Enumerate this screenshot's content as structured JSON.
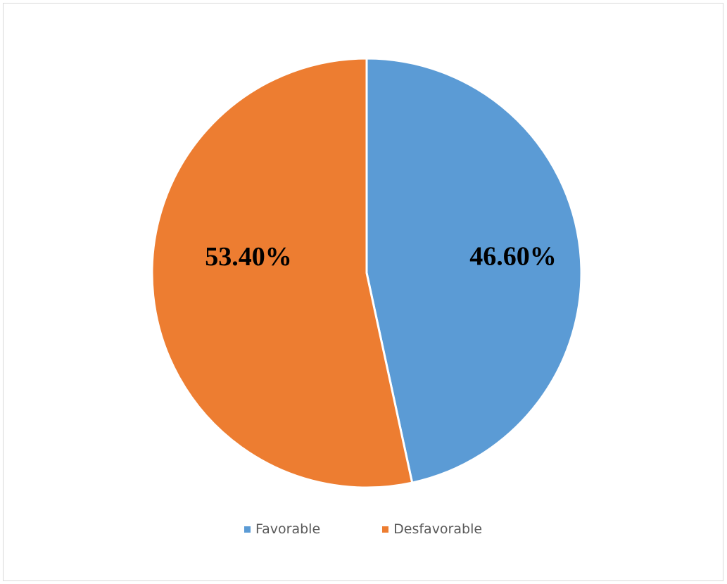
{
  "chart_data": {
    "type": "pie",
    "title": "",
    "start_angle_deg": 0,
    "direction": "clockwise",
    "legend_position": "bottom",
    "slices": [
      {
        "name": "Favorable",
        "value": 46.6,
        "label": "46.60%",
        "color": "#5B9BD5"
      },
      {
        "name": "Desfavorable",
        "value": 53.4,
        "label": "53.40%",
        "color": "#ED7D31"
      }
    ]
  }
}
